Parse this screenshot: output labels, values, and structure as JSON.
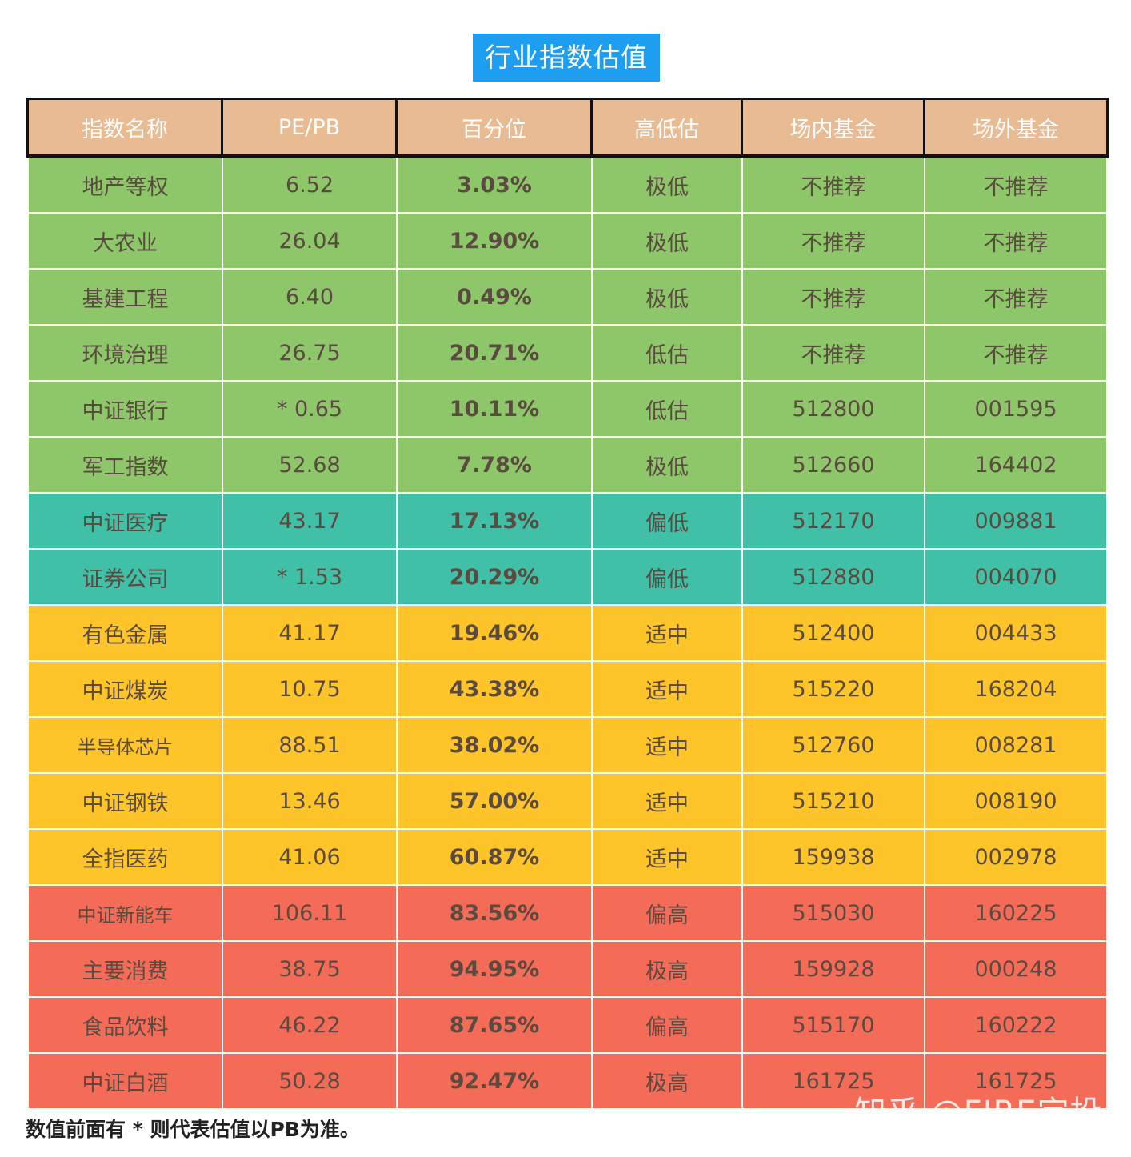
{
  "title": "行业指数估值",
  "headers": [
    "指数名称",
    "PE/PB",
    "百分位",
    "高低估",
    "场内基金",
    "场外基金"
  ],
  "colors": {
    "low": "#8dc76a",
    "mid_low": "#40c0a6",
    "fair": "#fec52a",
    "high": "#f46c58",
    "header": "#e8bb93",
    "title_bg": "#1e9ef0"
  },
  "rows": [
    {
      "name": "地产等权",
      "pe": "6.52",
      "pct": "3.03%",
      "level": "极低",
      "onsite": "不推荐",
      "offsite": "不推荐",
      "band": "low"
    },
    {
      "name": "大农业",
      "pe": "26.04",
      "pct": "12.90%",
      "level": "极低",
      "onsite": "不推荐",
      "offsite": "不推荐",
      "band": "low"
    },
    {
      "name": "基建工程",
      "pe": "6.40",
      "pct": "0.49%",
      "level": "极低",
      "onsite": "不推荐",
      "offsite": "不推荐",
      "band": "low"
    },
    {
      "name": "环境治理",
      "pe": "26.75",
      "pct": "20.71%",
      "level": "低估",
      "onsite": "不推荐",
      "offsite": "不推荐",
      "band": "low"
    },
    {
      "name": "中证银行",
      "pe": "* 0.65",
      "pct": "10.11%",
      "level": "低估",
      "onsite": "512800",
      "offsite": "001595",
      "band": "low"
    },
    {
      "name": "军工指数",
      "pe": "52.68",
      "pct": "7.78%",
      "level": "极低",
      "onsite": "512660",
      "offsite": "164402",
      "band": "low"
    },
    {
      "name": "中证医疗",
      "pe": "43.17",
      "pct": "17.13%",
      "level": "偏低",
      "onsite": "512170",
      "offsite": "009881",
      "band": "mid_low"
    },
    {
      "name": "证券公司",
      "pe": "* 1.53",
      "pct": "20.29%",
      "level": "偏低",
      "onsite": "512880",
      "offsite": "004070",
      "band": "mid_low"
    },
    {
      "name": "有色金属",
      "pe": "41.17",
      "pct": "19.46%",
      "level": "适中",
      "onsite": "512400",
      "offsite": "004433",
      "band": "fair"
    },
    {
      "name": "中证煤炭",
      "pe": "10.75",
      "pct": "43.38%",
      "level": "适中",
      "onsite": "515220",
      "offsite": "168204",
      "band": "fair"
    },
    {
      "name": "半导体芯片",
      "pe": "88.51",
      "pct": "38.02%",
      "level": "适中",
      "onsite": "512760",
      "offsite": "008281",
      "band": "fair"
    },
    {
      "name": "中证钢铁",
      "pe": "13.46",
      "pct": "57.00%",
      "level": "适中",
      "onsite": "515210",
      "offsite": "008190",
      "band": "fair"
    },
    {
      "name": "全指医药",
      "pe": "41.06",
      "pct": "60.87%",
      "level": "适中",
      "onsite": "159938",
      "offsite": "002978",
      "band": "fair"
    },
    {
      "name": "中证新能车",
      "pe": "106.11",
      "pct": "83.56%",
      "level": "偏高",
      "onsite": "515030",
      "offsite": "160225",
      "band": "high"
    },
    {
      "name": "主要消费",
      "pe": "38.75",
      "pct": "94.95%",
      "level": "极高",
      "onsite": "159928",
      "offsite": "000248",
      "band": "high"
    },
    {
      "name": "食品饮料",
      "pe": "46.22",
      "pct": "87.65%",
      "level": "偏高",
      "onsite": "515170",
      "offsite": "160222",
      "band": "high"
    },
    {
      "name": "中证白酒",
      "pe": "50.28",
      "pct": "92.47%",
      "level": "极高",
      "onsite": "161725",
      "offsite": "161725",
      "band": "high"
    }
  ],
  "footnote": "数值前面有 * 则代表估值以PB为准。",
  "watermark": "知乎 @FIRE定投"
}
